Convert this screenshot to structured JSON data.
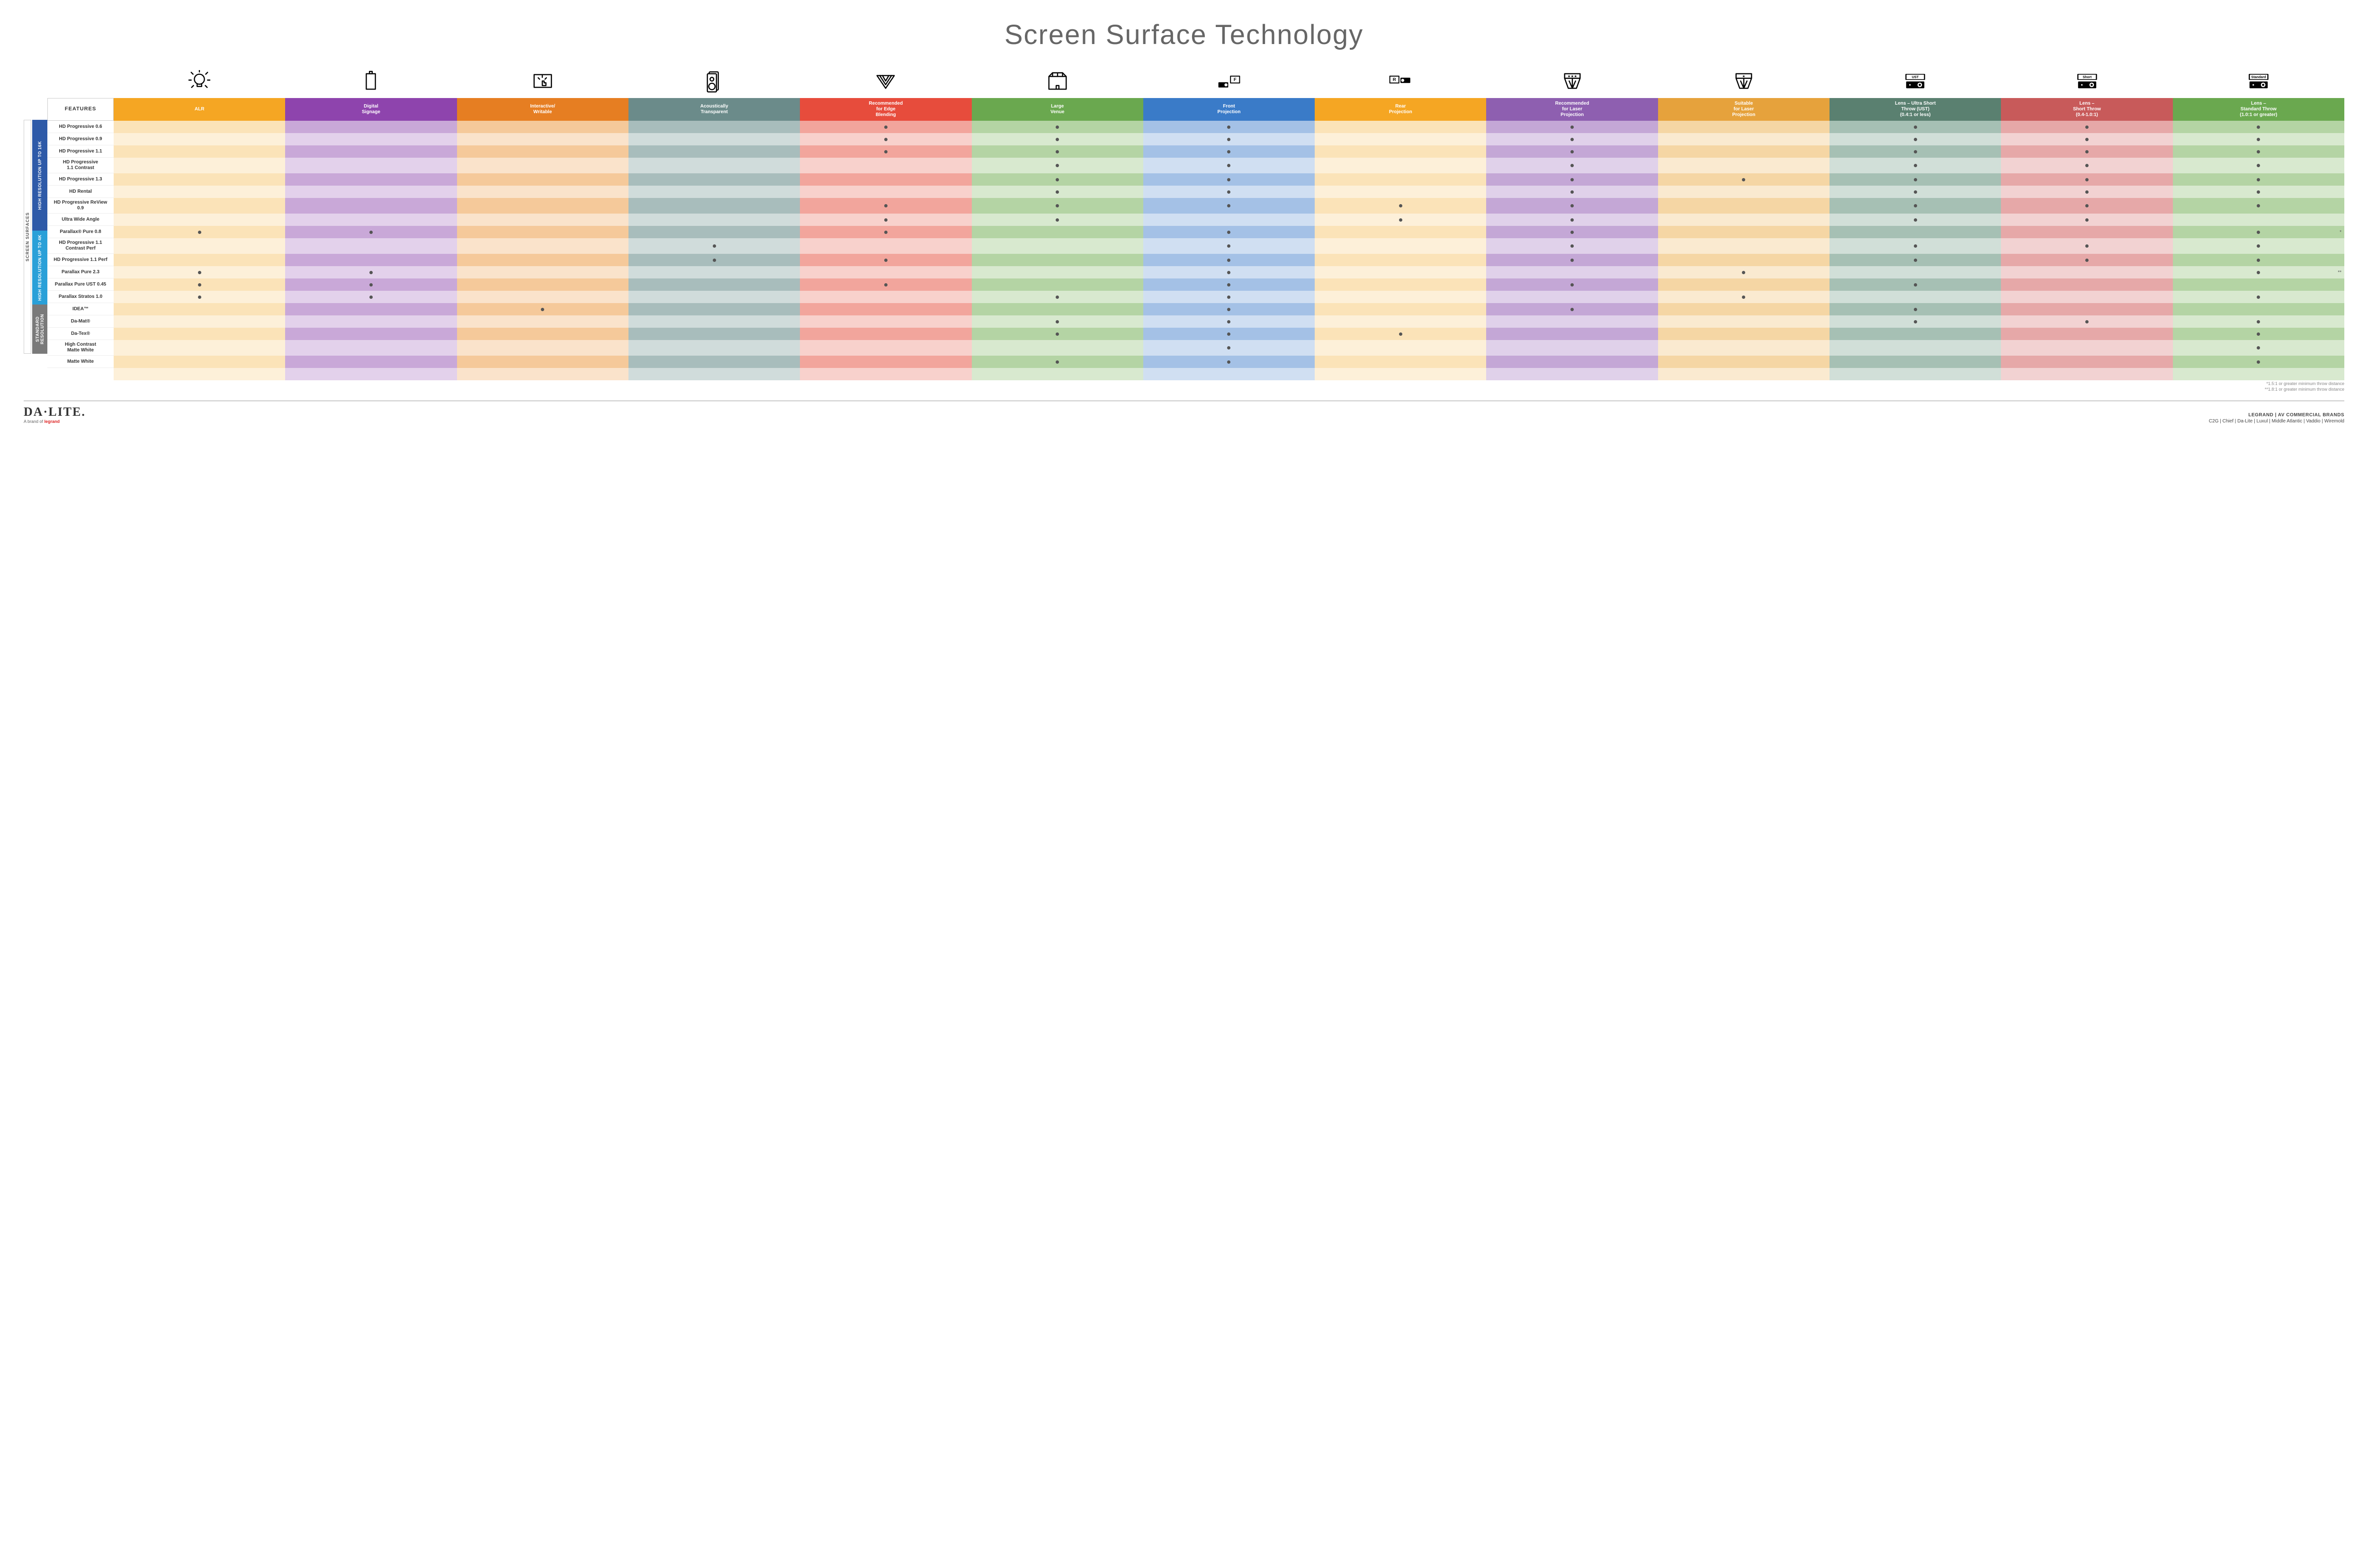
{
  "title": "Screen Surface Technology",
  "features_header": "FEATURES",
  "side_label": "SCREEN SURFACES",
  "columns": [
    {
      "key": "alr",
      "label": "ALR",
      "color": "#f5a623",
      "light": "#fbe3b8",
      "lighter": "#fdf0d9"
    },
    {
      "key": "digsig",
      "label": "Digital\nSignage",
      "color": "#8e44ad",
      "light": "#c9a8d8",
      "lighter": "#e3d1eb"
    },
    {
      "key": "interact",
      "label": "Interactive/\nWritable",
      "color": "#e67e22",
      "light": "#f5c99a",
      "lighter": "#fae3cb"
    },
    {
      "key": "acoustic",
      "label": "Acoustically\nTransparent",
      "color": "#6b8b8a",
      "light": "#a8bdbc",
      "lighter": "#d0dcdb"
    },
    {
      "key": "edge",
      "label": "Recommended\nfor Edge\nBlending",
      "color": "#e74c3c",
      "light": "#f2a59c",
      "lighter": "#f8d1cc"
    },
    {
      "key": "large",
      "label": "Large\nVenue",
      "color": "#6aa84f",
      "light": "#b4d4a4",
      "lighter": "#d8e9cf"
    },
    {
      "key": "front",
      "label": "Front\nProjection",
      "color": "#3a7bc8",
      "light": "#a4c1e6",
      "lighter": "#d0dff2"
    },
    {
      "key": "rear",
      "label": "Rear\nProjection",
      "color": "#f5a623",
      "light": "#fbe3b8",
      "lighter": "#fdf0d9"
    },
    {
      "key": "reclaser",
      "label": "Recommended\nfor Laser\nProjection",
      "color": "#8e5fb0",
      "light": "#c4a7d6",
      "lighter": "#e0d1ea"
    },
    {
      "key": "suitlaser",
      "label": "Suitable\nfor Laser\nProjection",
      "color": "#e6a23c",
      "light": "#f5d6a4",
      "lighter": "#faead0"
    },
    {
      "key": "ust",
      "label": "Lens – Ultra Short\nThrow (UST)\n(0.4:1 or less)",
      "color": "#5a8070",
      "light": "#a6c0b4",
      "lighter": "#d1dfd8"
    },
    {
      "key": "short",
      "label": "Lens –\nShort Throw\n(0.4-1.0:1)",
      "color": "#c85a5a",
      "light": "#e6a8a8",
      "lighter": "#f2d2d2"
    },
    {
      "key": "std",
      "label": "Lens –\nStandard Throw\n(1.0:1 or greater)",
      "color": "#6aa84f",
      "light": "#b4d4a4",
      "lighter": "#d8e9cf"
    }
  ],
  "groups": [
    {
      "label": "HIGH RESOLUTION UP TO 16K",
      "color": "#2e5aa8",
      "rows": [
        {
          "label": "HD Progressive 0.6",
          "dots": [
            "edge",
            "large",
            "front",
            "reclaser",
            "ust",
            "short",
            "std"
          ]
        },
        {
          "label": "HD Progressive 0.9",
          "dots": [
            "edge",
            "large",
            "front",
            "reclaser",
            "ust",
            "short",
            "std"
          ]
        },
        {
          "label": "HD Progressive 1.1",
          "dots": [
            "edge",
            "large",
            "front",
            "reclaser",
            "ust",
            "short",
            "std"
          ]
        },
        {
          "label": "HD Progressive\n1.1 Contrast",
          "dots": [
            "large",
            "front",
            "reclaser",
            "ust",
            "short",
            "std"
          ]
        },
        {
          "label": "HD Progressive 1.3",
          "dots": [
            "large",
            "front",
            "reclaser",
            "suitlaser",
            "ust",
            "short",
            "std"
          ]
        },
        {
          "label": "HD Rental",
          "dots": [
            "large",
            "front",
            "reclaser",
            "ust",
            "short",
            "std"
          ]
        },
        {
          "label": "HD Progressive ReView 0.9",
          "dots": [
            "edge",
            "large",
            "front",
            "rear",
            "reclaser",
            "ust",
            "short",
            "std"
          ]
        },
        {
          "label": "Ultra Wide Angle",
          "dots": [
            "edge",
            "large",
            "rear",
            "reclaser",
            "ust",
            "short"
          ]
        },
        {
          "label": "Parallax® Pure 0.8",
          "dots": [
            "alr",
            "digsig",
            "edge",
            "front",
            "reclaser",
            "std"
          ],
          "note_std": "*"
        }
      ]
    },
    {
      "label": "HIGH RESOLUTION UP TO 4K",
      "color": "#2aa0d8",
      "rows": [
        {
          "label": "HD Progressive 1.1\nContrast Perf",
          "dots": [
            "acoustic",
            "front",
            "reclaser",
            "ust",
            "short",
            "std"
          ]
        },
        {
          "label": "HD Progressive 1.1 Perf",
          "dots": [
            "acoustic",
            "edge",
            "front",
            "reclaser",
            "ust",
            "short",
            "std"
          ]
        },
        {
          "label": "Parallax Pure 2.3",
          "dots": [
            "alr",
            "digsig",
            "front",
            "suitlaser",
            "std"
          ],
          "note_std": "**"
        },
        {
          "label": "Parallax Pure UST 0.45",
          "dots": [
            "alr",
            "digsig",
            "edge",
            "front",
            "reclaser",
            "ust"
          ]
        },
        {
          "label": "Parallax Stratos 1.0",
          "dots": [
            "alr",
            "digsig",
            "large",
            "front",
            "suitlaser",
            "std"
          ]
        },
        {
          "label": "IDEA™",
          "dots": [
            "interact",
            "front",
            "reclaser",
            "ust"
          ]
        }
      ]
    },
    {
      "label": "STANDARD\nRESOLUTION",
      "color": "#7a7a7a",
      "rows": [
        {
          "label": "Da-Mat®",
          "dots": [
            "large",
            "front",
            "ust",
            "short",
            "std"
          ]
        },
        {
          "label": "Da-Tex®",
          "dots": [
            "large",
            "front",
            "rear",
            "std"
          ]
        },
        {
          "label": "High Contrast\nMatte White",
          "dots": [
            "front",
            "std"
          ]
        },
        {
          "label": "Matte White",
          "dots": [
            "large",
            "front",
            "std"
          ]
        }
      ]
    }
  ],
  "footnotes": [
    "*1.5:1 or greater minimum throw distance",
    "**1.8:1 or greater minimum throw distance"
  ],
  "brand": "DA·LITE.",
  "brand_sub_prefix": "A brand of ",
  "brand_sub_leg": "legrand",
  "footer_right_top": "LEGRAND | AV COMMERCIAL BRANDS",
  "footer_right_brands": "C2G  |  Chief  |  Da-Lite  |  Luxul  |  Middle Atlantic  |  Vaddio  |  Wiremold",
  "icons": [
    "bulb",
    "rect",
    "touch",
    "speaker",
    "triangle",
    "venue",
    "frontproj",
    "rearproj",
    "laser3",
    "laser1",
    "ust",
    "short",
    "standard"
  ]
}
